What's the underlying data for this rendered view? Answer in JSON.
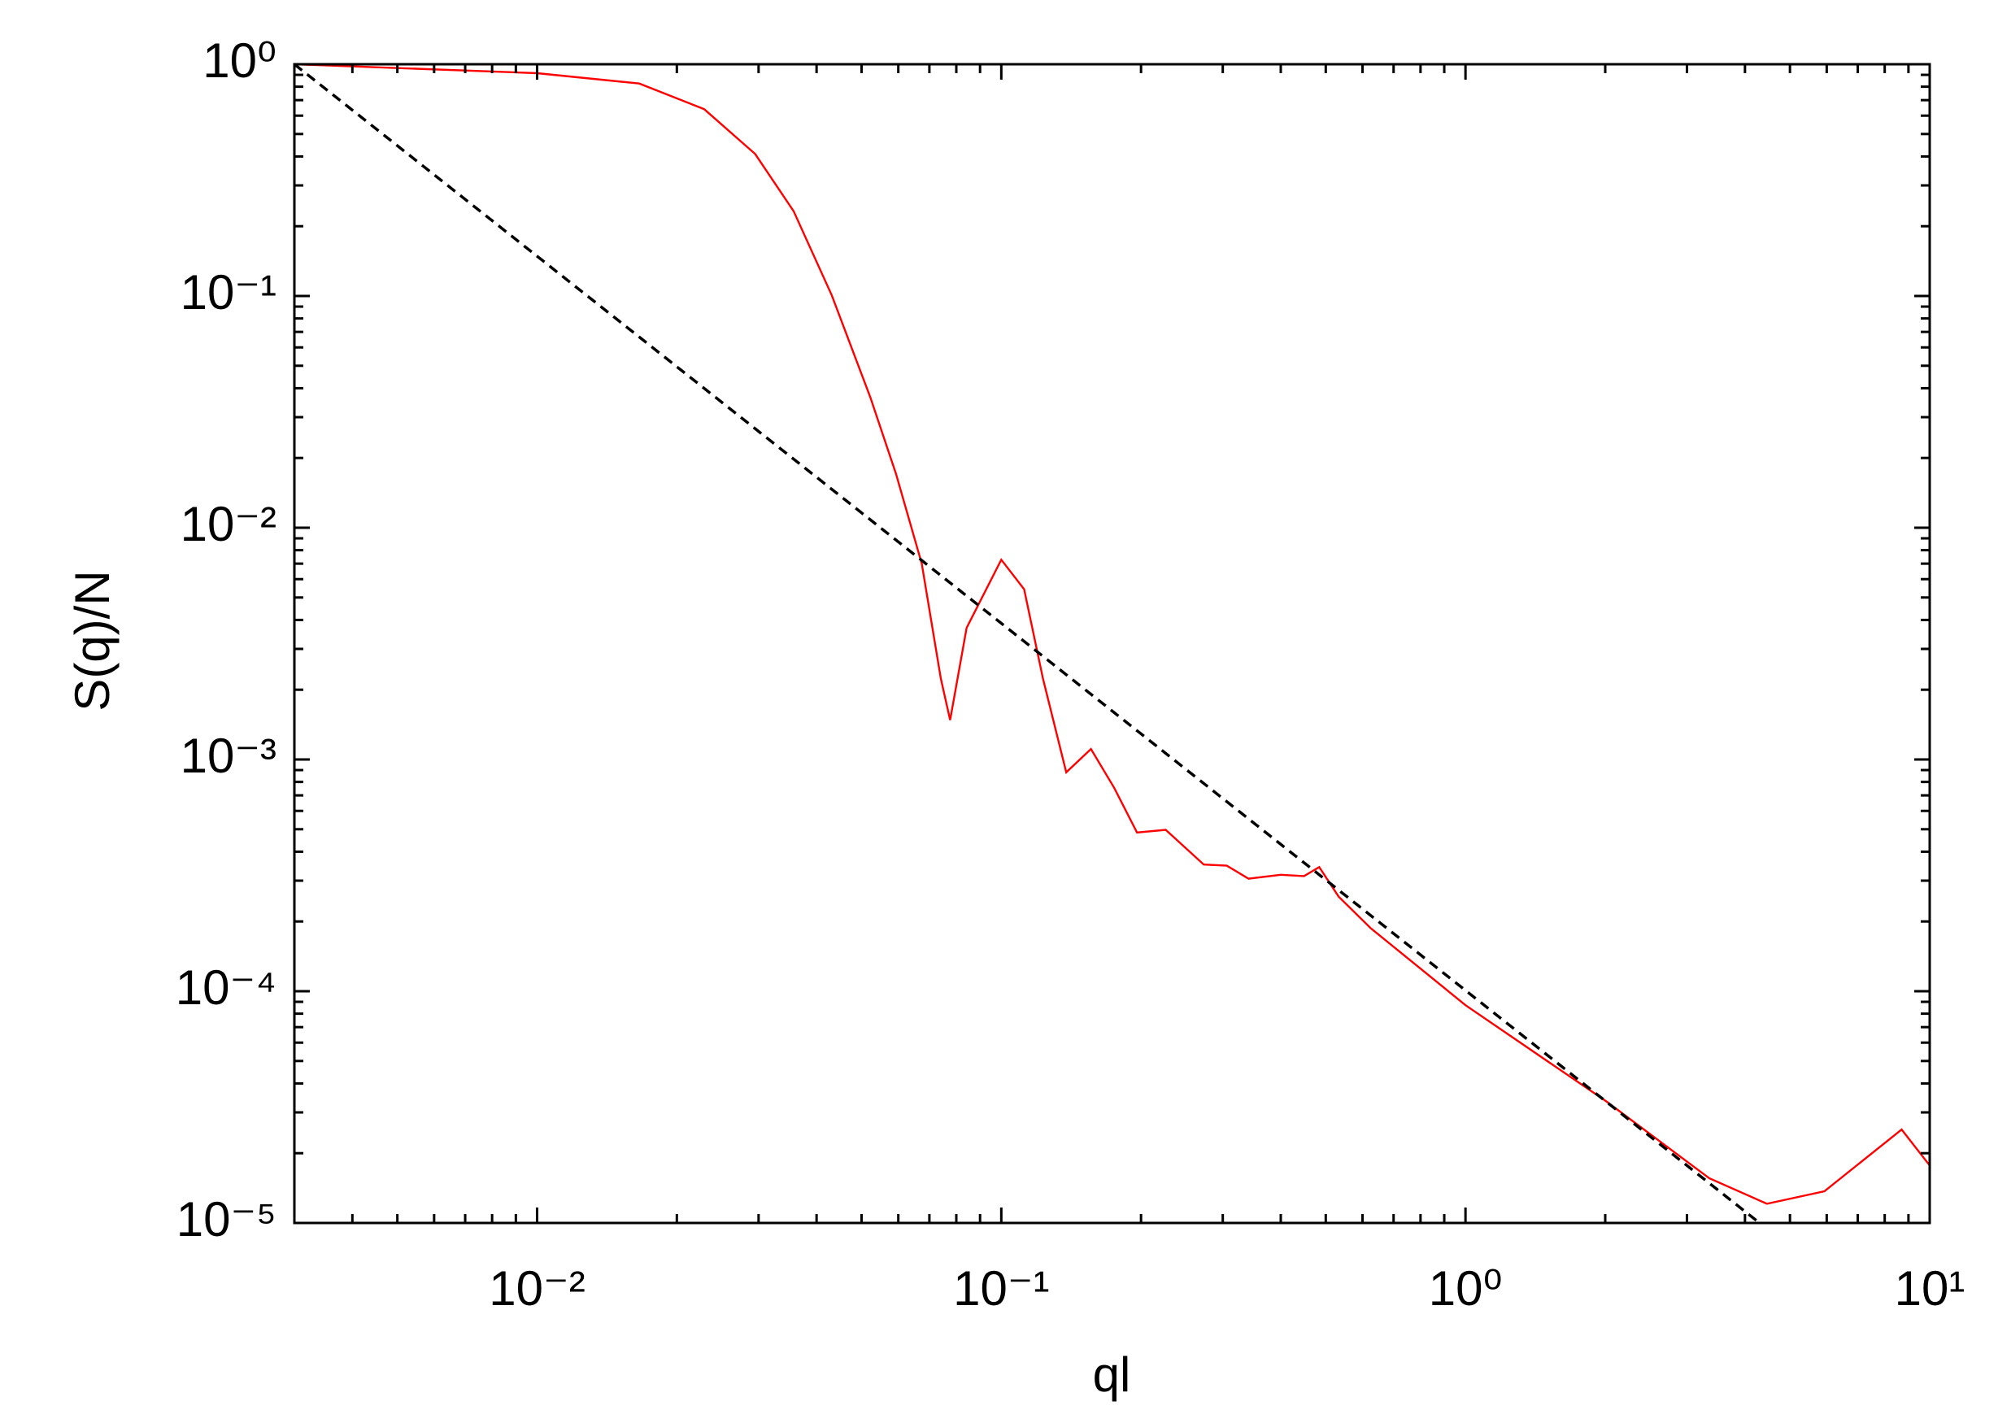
{
  "chart_data": {
    "type": "line",
    "xlabel": "ql",
    "ylabel": "S(q)/N",
    "xscale": "log",
    "yscale": "log",
    "xlim": [
      0.003,
      10
    ],
    "ylim": [
      1e-05,
      1
    ],
    "xticks": [
      {
        "value": 0.01,
        "label": "10⁻²"
      },
      {
        "value": 0.1,
        "label": "10⁻¹"
      },
      {
        "value": 1,
        "label": "10⁰"
      },
      {
        "value": 10,
        "label": "10¹"
      }
    ],
    "yticks": [
      {
        "value": 1e-05,
        "label": "10⁻⁵"
      },
      {
        "value": 0.0001,
        "label": "10⁻⁴"
      },
      {
        "value": 0.001,
        "label": "10⁻³"
      },
      {
        "value": 0.01,
        "label": "10⁻²"
      },
      {
        "value": 0.1,
        "label": "10⁻¹"
      },
      {
        "value": 1,
        "label": "10⁰"
      }
    ],
    "xminorticks": [
      0.004,
      0.005,
      0.006,
      0.007,
      0.008,
      0.009,
      0.02,
      0.03,
      0.04,
      0.05,
      0.06,
      0.07,
      0.08,
      0.09,
      0.2,
      0.3,
      0.4,
      0.5,
      0.6,
      0.7,
      0.8,
      0.9,
      2,
      3,
      4,
      5,
      6,
      7,
      8,
      9
    ],
    "yminorticks": [
      2e-05,
      3e-05,
      4e-05,
      5e-05,
      6e-05,
      7e-05,
      8e-05,
      9e-05,
      0.0002,
      0.0003,
      0.0004,
      0.0005,
      0.0006,
      0.0007,
      0.0008,
      0.0009,
      0.002,
      0.003,
      0.004,
      0.005,
      0.006,
      0.007,
      0.008,
      0.009,
      0.02,
      0.03,
      0.04,
      0.05,
      0.06,
      0.07,
      0.08,
      0.09,
      0.2,
      0.3,
      0.4,
      0.5,
      0.6,
      0.7,
      0.8,
      0.9
    ],
    "series": [
      {
        "color": "#ff0000",
        "dashed": false,
        "x": [
          0.003,
          0.01,
          0.0166,
          0.0229,
          0.0295,
          0.0357,
          0.0431,
          0.0522,
          0.0593,
          0.0674,
          0.0741,
          0.0776,
          0.0842,
          0.1,
          0.112,
          0.123,
          0.138,
          0.156,
          0.175,
          0.196,
          0.226,
          0.273,
          0.306,
          0.341,
          0.4,
          0.449,
          0.484,
          0.533,
          0.625,
          1,
          2.01,
          3.35,
          4.46,
          5.93,
          8.7,
          10
        ],
        "values": [
          1,
          0.915,
          0.826,
          0.64,
          0.41,
          0.232,
          0.101,
          0.0366,
          0.0171,
          0.007,
          0.00223,
          0.00148,
          0.0037,
          0.00728,
          0.00543,
          0.00223,
          0.00088,
          0.00111,
          0.000755,
          0.000484,
          0.000497,
          0.000352,
          0.000348,
          0.000306,
          0.000318,
          0.000314,
          0.000343,
          0.000256,
          0.000187,
          8.7e-05,
          3.35e-05,
          1.56e-05,
          1.21e-05,
          1.37e-05,
          2.53e-05,
          1.77e-05
        ]
      },
      {
        "color": "#000000",
        "dashed": true,
        "x": [
          0.003,
          4.3
        ],
        "values": [
          1,
          1e-05
        ]
      }
    ]
  }
}
